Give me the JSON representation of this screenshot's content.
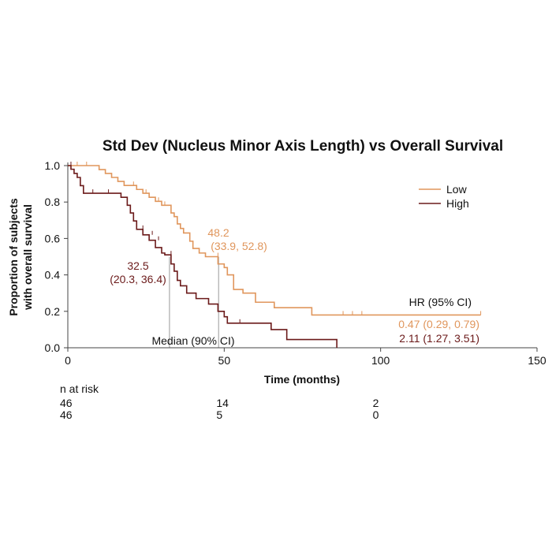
{
  "colors": {
    "low": "#e0965c",
    "high": "#6b1a1a",
    "axis": "#444444",
    "median_line": "#999999"
  },
  "chart_data": {
    "type": "line",
    "title": "Std Dev (Nucleus Minor Axis Length) vs Overall Survival",
    "xlabel": "Time (months)",
    "ylabel": [
      "Proportion of subjects",
      "with overall survival"
    ],
    "xlim": [
      0,
      150
    ],
    "ylim": [
      0,
      1
    ],
    "x_ticks": [
      0,
      50,
      100,
      150
    ],
    "y_ticks": [
      0.0,
      0.2,
      0.4,
      0.6,
      0.8,
      1.0
    ],
    "y_tick_labels": [
      "0.0",
      "0.2",
      "0.4",
      "0.6",
      "0.8",
      "1.0"
    ],
    "legend_position": "top-right",
    "series": [
      {
        "name": "Low",
        "step": [
          [
            0,
            1.0
          ],
          [
            10,
            1.0
          ],
          [
            10,
            0.978
          ],
          [
            12,
            0.978
          ],
          [
            12,
            0.957
          ],
          [
            14,
            0.957
          ],
          [
            14,
            0.935
          ],
          [
            16,
            0.935
          ],
          [
            16,
            0.913
          ],
          [
            18,
            0.913
          ],
          [
            18,
            0.891
          ],
          [
            22,
            0.891
          ],
          [
            22,
            0.869
          ],
          [
            24,
            0.869
          ],
          [
            24,
            0.848
          ],
          [
            26,
            0.848
          ],
          [
            26,
            0.826
          ],
          [
            28,
            0.826
          ],
          [
            28,
            0.804
          ],
          [
            30,
            0.804
          ],
          [
            30,
            0.782
          ],
          [
            33,
            0.782
          ],
          [
            33,
            0.74
          ],
          [
            34,
            0.74
          ],
          [
            34,
            0.72
          ],
          [
            35,
            0.72
          ],
          [
            35,
            0.68
          ],
          [
            36,
            0.68
          ],
          [
            36,
            0.655
          ],
          [
            37,
            0.655
          ],
          [
            37,
            0.63
          ],
          [
            39,
            0.63
          ],
          [
            39,
            0.585
          ],
          [
            40,
            0.585
          ],
          [
            40,
            0.545
          ],
          [
            42,
            0.545
          ],
          [
            42,
            0.52
          ],
          [
            44,
            0.52
          ],
          [
            44,
            0.5
          ],
          [
            48,
            0.5
          ],
          [
            48,
            0.46
          ],
          [
            50,
            0.46
          ],
          [
            50,
            0.44
          ],
          [
            51,
            0.44
          ],
          [
            51,
            0.4
          ],
          [
            53,
            0.4
          ],
          [
            53,
            0.32
          ],
          [
            56,
            0.32
          ],
          [
            56,
            0.3
          ],
          [
            60,
            0.3
          ],
          [
            60,
            0.25
          ],
          [
            66,
            0.25
          ],
          [
            66,
            0.22
          ],
          [
            78,
            0.22
          ],
          [
            78,
            0.18
          ],
          [
            132,
            0.18
          ]
        ],
        "censored": [
          [
            3,
            1.0
          ],
          [
            6,
            1.0
          ],
          [
            18,
            0.891
          ],
          [
            21,
            0.891
          ],
          [
            25,
            0.848
          ],
          [
            29,
            0.804
          ],
          [
            31,
            0.782
          ],
          [
            34,
            0.72
          ],
          [
            36,
            0.655
          ],
          [
            48,
            0.5
          ],
          [
            88,
            0.18
          ],
          [
            91,
            0.18
          ],
          [
            94,
            0.18
          ],
          [
            132,
            0.18
          ]
        ]
      },
      {
        "name": "High",
        "step": [
          [
            0,
            1.0
          ],
          [
            1,
            1.0
          ],
          [
            1,
            0.98
          ],
          [
            2,
            0.98
          ],
          [
            2,
            0.957
          ],
          [
            3,
            0.957
          ],
          [
            3,
            0.935
          ],
          [
            4,
            0.935
          ],
          [
            4,
            0.89
          ],
          [
            5,
            0.89
          ],
          [
            5,
            0.848
          ],
          [
            17,
            0.848
          ],
          [
            17,
            0.826
          ],
          [
            19,
            0.826
          ],
          [
            19,
            0.782
          ],
          [
            20,
            0.782
          ],
          [
            20,
            0.74
          ],
          [
            21,
            0.74
          ],
          [
            21,
            0.696
          ],
          [
            22,
            0.696
          ],
          [
            22,
            0.65
          ],
          [
            24,
            0.65
          ],
          [
            24,
            0.62
          ],
          [
            26,
            0.62
          ],
          [
            26,
            0.59
          ],
          [
            28,
            0.59
          ],
          [
            28,
            0.55
          ],
          [
            30,
            0.55
          ],
          [
            30,
            0.52
          ],
          [
            31,
            0.52
          ],
          [
            31,
            0.51
          ],
          [
            33,
            0.51
          ],
          [
            33,
            0.46
          ],
          [
            34,
            0.46
          ],
          [
            34,
            0.42
          ],
          [
            35,
            0.42
          ],
          [
            35,
            0.37
          ],
          [
            36,
            0.37
          ],
          [
            36,
            0.34
          ],
          [
            38,
            0.34
          ],
          [
            38,
            0.3
          ],
          [
            41,
            0.3
          ],
          [
            41,
            0.27
          ],
          [
            45,
            0.27
          ],
          [
            45,
            0.24
          ],
          [
            48,
            0.24
          ],
          [
            48,
            0.2
          ],
          [
            50,
            0.2
          ],
          [
            50,
            0.17
          ],
          [
            51,
            0.17
          ],
          [
            51,
            0.135
          ],
          [
            65,
            0.135
          ],
          [
            65,
            0.1
          ],
          [
            70,
            0.1
          ],
          [
            70,
            0.045
          ],
          [
            86,
            0.045
          ],
          [
            86,
            0.0
          ]
        ],
        "censored": [
          [
            1,
            1.0
          ],
          [
            8,
            0.848
          ],
          [
            13,
            0.848
          ],
          [
            24,
            0.65
          ],
          [
            27,
            0.62
          ],
          [
            29,
            0.59
          ],
          [
            33,
            0.51
          ],
          [
            55,
            0.135
          ]
        ]
      }
    ],
    "annotations": {
      "low_median_value": "48.2",
      "low_median_ci": "(33.9, 52.8)",
      "high_median_value": "32.5",
      "high_median_ci": "(20.3, 36.4)",
      "median_label": "Median (90% CI)",
      "hr_header": "HR (95% CI)",
      "hr_low": "0.47 (0.29, 0.79)",
      "hr_high": "2.11 (1.27, 3.51)"
    },
    "median_lines": [
      {
        "series": "High",
        "x": 32.5,
        "y": 0.5
      },
      {
        "series": "Low",
        "x": 48.2,
        "y": 0.5
      }
    ],
    "risk_table": {
      "header": "n at risk",
      "times": [
        0,
        50,
        100
      ],
      "low": [
        "46",
        "14",
        "2"
      ],
      "high": [
        "46",
        "5",
        "0"
      ]
    }
  }
}
